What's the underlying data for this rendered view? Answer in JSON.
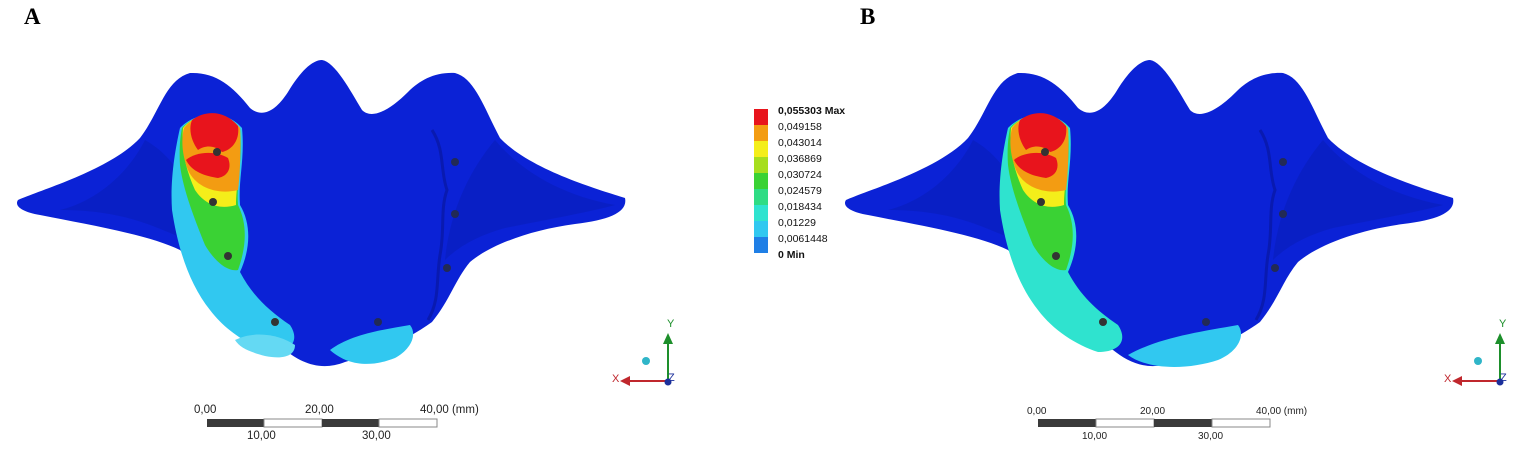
{
  "panels": [
    {
      "letter": "A"
    },
    {
      "letter": "B"
    }
  ],
  "legend": {
    "entries": [
      {
        "label": "0,055303 Max",
        "color": "#e8141c",
        "bold": true
      },
      {
        "label": "0,049158",
        "color": "#f39c12",
        "bold": false
      },
      {
        "label": "0,043014",
        "color": "#f4ee1a",
        "bold": false
      },
      {
        "label": "0,036869",
        "color": "#a6de1e",
        "bold": false
      },
      {
        "label": "0,030724",
        "color": "#3ad234",
        "bold": false
      },
      {
        "label": "0,024579",
        "color": "#2fdc84",
        "bold": false
      },
      {
        "label": "0,018434",
        "color": "#2fe3cf",
        "bold": false
      },
      {
        "label": "0,01229",
        "color": "#31c8f0",
        "bold": false
      },
      {
        "label": "0,0061448",
        "color": "#1f7fe6",
        "bold": false
      },
      {
        "label": "0 Min",
        "color": "#0b22d6",
        "bold": true
      }
    ]
  },
  "scale_bar": {
    "top_labels": [
      "0,00",
      "20,00",
      "40,00 (mm)"
    ],
    "bottom_labels": [
      "10,00",
      "30,00"
    ]
  },
  "axis_triad": {
    "x": "X",
    "y": "Y",
    "z": "Z"
  },
  "colors": {
    "base_model": "#0b22d6",
    "x_axis": "#c0272d",
    "y_axis": "#1d8f2b",
    "z_axis": "#1b2f9b"
  }
}
